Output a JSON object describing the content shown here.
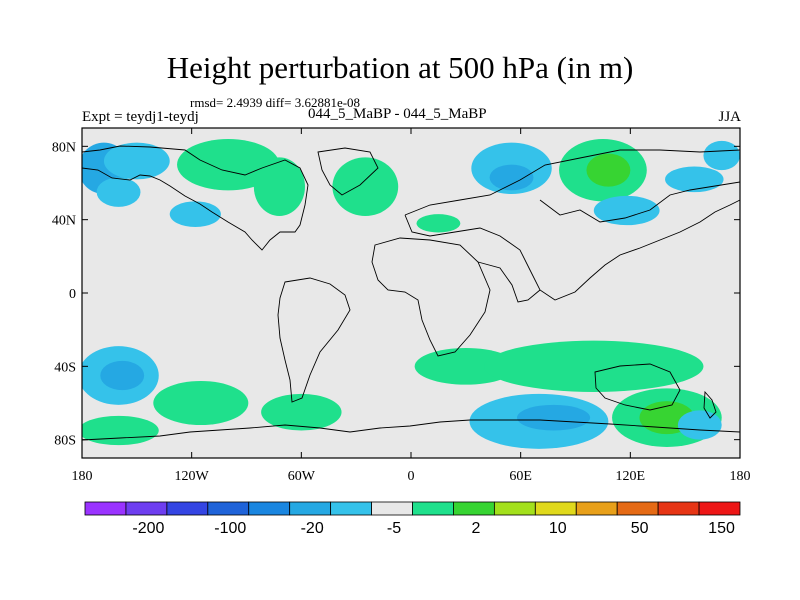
{
  "chart_data": {
    "type": "heatmap",
    "title": "Height perturbation at 500 hPa (in m)",
    "stats_line": "rmsd= 2.4939 diff= 3.62881e-08",
    "experiment": "Expt = teydj1-teydj",
    "case_label": "044_5_MaBP - 044_5_MaBP",
    "season": "JJA",
    "x_axis": {
      "range": [
        -180,
        180
      ],
      "ticks": [
        {
          "value": -180,
          "label": "180"
        },
        {
          "value": -120,
          "label": "120W"
        },
        {
          "value": -60,
          "label": "60W"
        },
        {
          "value": 0,
          "label": "0"
        },
        {
          "value": 60,
          "label": "60E"
        },
        {
          "value": 120,
          "label": "120E"
        },
        {
          "value": 180,
          "label": "180"
        }
      ]
    },
    "y_axis": {
      "range": [
        -90,
        90
      ],
      "ticks": [
        {
          "value": 80,
          "label": "80N"
        },
        {
          "value": 40,
          "label": "40N"
        },
        {
          "value": 0,
          "label": "0"
        },
        {
          "value": -40,
          "label": "40S"
        },
        {
          "value": -80,
          "label": "80S"
        }
      ]
    },
    "background_color": "#e8e8e8",
    "colorbar": {
      "colors": [
        "#9a33ff",
        "#6e3ef0",
        "#3445e3",
        "#1f63d9",
        "#1a86e0",
        "#25a8e3",
        "#35c2ea",
        "#e8e8e8",
        "#1fe08c",
        "#37d432",
        "#a3e01c",
        "#e0d91c",
        "#e8a01a",
        "#e56a15",
        "#e63515",
        "#ed1616"
      ],
      "labels": [
        "-200",
        "-100",
        "-20",
        "-5",
        "2",
        "10",
        "50",
        "150"
      ]
    },
    "anomaly_regions": [
      {
        "lon": -168,
        "lat": 68,
        "rlon": 14,
        "rlat": 14,
        "level": 5
      },
      {
        "lon": -150,
        "lat": 72,
        "rlon": 18,
        "rlat": 10,
        "level": 6
      },
      {
        "lon": -160,
        "lat": 55,
        "rlon": 12,
        "rlat": 8,
        "level": 6
      },
      {
        "lon": -100,
        "lat": 70,
        "rlon": 28,
        "rlat": 14,
        "level": 8
      },
      {
        "lon": -72,
        "lat": 58,
        "rlon": 14,
        "rlat": 16,
        "level": 8
      },
      {
        "lon": -118,
        "lat": 43,
        "rlon": 14,
        "rlat": 7,
        "level": 6
      },
      {
        "lon": -25,
        "lat": 58,
        "rlon": 18,
        "rlat": 16,
        "level": 8
      },
      {
        "lon": 15,
        "lat": 38,
        "rlon": 12,
        "rlat": 5,
        "level": 8
      },
      {
        "lon": 55,
        "lat": 68,
        "rlon": 22,
        "rlat": 14,
        "level": 6
      },
      {
        "lon": 55,
        "lat": 63,
        "rlon": 12,
        "rlat": 7,
        "level": 5
      },
      {
        "lon": 105,
        "lat": 67,
        "rlon": 24,
        "rlat": 17,
        "level": 8
      },
      {
        "lon": 108,
        "lat": 67,
        "rlon": 12,
        "rlat": 9,
        "level": 9
      },
      {
        "lon": 118,
        "lat": 45,
        "rlon": 18,
        "rlat": 8,
        "level": 6
      },
      {
        "lon": 155,
        "lat": 62,
        "rlon": 16,
        "rlat": 7,
        "level": 6
      },
      {
        "lon": 170,
        "lat": 75,
        "rlon": 10,
        "rlat": 8,
        "level": 6
      },
      {
        "lon": -160,
        "lat": -45,
        "rlon": 22,
        "rlat": 16,
        "level": 6
      },
      {
        "lon": -158,
        "lat": -45,
        "rlon": 12,
        "rlat": 8,
        "level": 5
      },
      {
        "lon": -160,
        "lat": -75,
        "rlon": 22,
        "rlat": 8,
        "level": 8
      },
      {
        "lon": -115,
        "lat": -60,
        "rlon": 26,
        "rlat": 12,
        "level": 8
      },
      {
        "lon": -60,
        "lat": -65,
        "rlon": 22,
        "rlat": 10,
        "level": 8
      },
      {
        "lon": 30,
        "lat": -40,
        "rlon": 28,
        "rlat": 10,
        "level": 8
      },
      {
        "lon": 100,
        "lat": -40,
        "rlon": 60,
        "rlat": 14,
        "level": 8
      },
      {
        "lon": 70,
        "lat": -70,
        "rlon": 38,
        "rlat": 15,
        "level": 6
      },
      {
        "lon": 78,
        "lat": -68,
        "rlon": 20,
        "rlat": 7,
        "level": 5
      },
      {
        "lon": 140,
        "lat": -68,
        "rlon": 30,
        "rlat": 16,
        "level": 8
      },
      {
        "lon": 140,
        "lat": -68,
        "rlon": 15,
        "rlat": 9,
        "level": 9
      },
      {
        "lon": 158,
        "lat": -72,
        "rlon": 12,
        "rlat": 8,
        "level": 6
      }
    ]
  }
}
